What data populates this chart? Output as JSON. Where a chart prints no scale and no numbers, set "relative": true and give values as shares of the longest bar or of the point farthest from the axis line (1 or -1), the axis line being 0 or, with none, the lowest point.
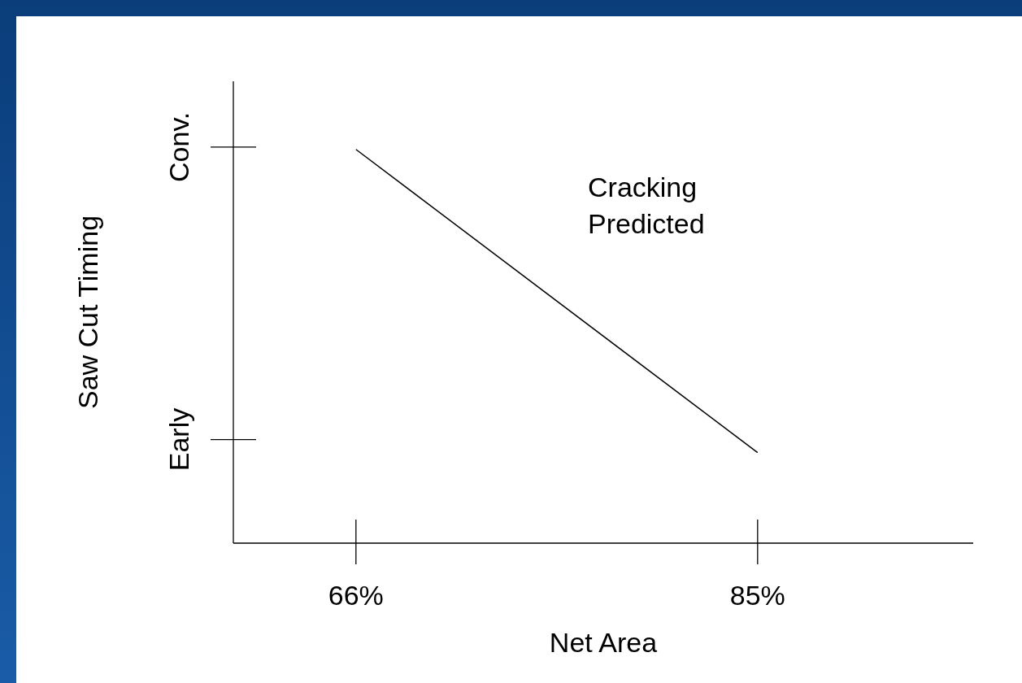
{
  "chart_data": {
    "type": "line",
    "xlabel": "Net Area",
    "ylabel": "Saw Cut Timing",
    "relative": true,
    "x": [
      66,
      85
    ],
    "series": [
      {
        "color": "#000000",
        "values": [
          1,
          0.23
        ]
      }
    ],
    "xlim": [
      60.2,
      95.2
    ],
    "xticks": [
      {
        "value": 66,
        "label": "66%"
      },
      {
        "value": 85,
        "label": "85%"
      }
    ],
    "grid": false,
    "legend": false,
    "marker": "none",
    "line_style": "solid",
    "annotations": [
      "Conv.",
      "Early",
      "Cracking\nPredicted"
    ]
  }
}
